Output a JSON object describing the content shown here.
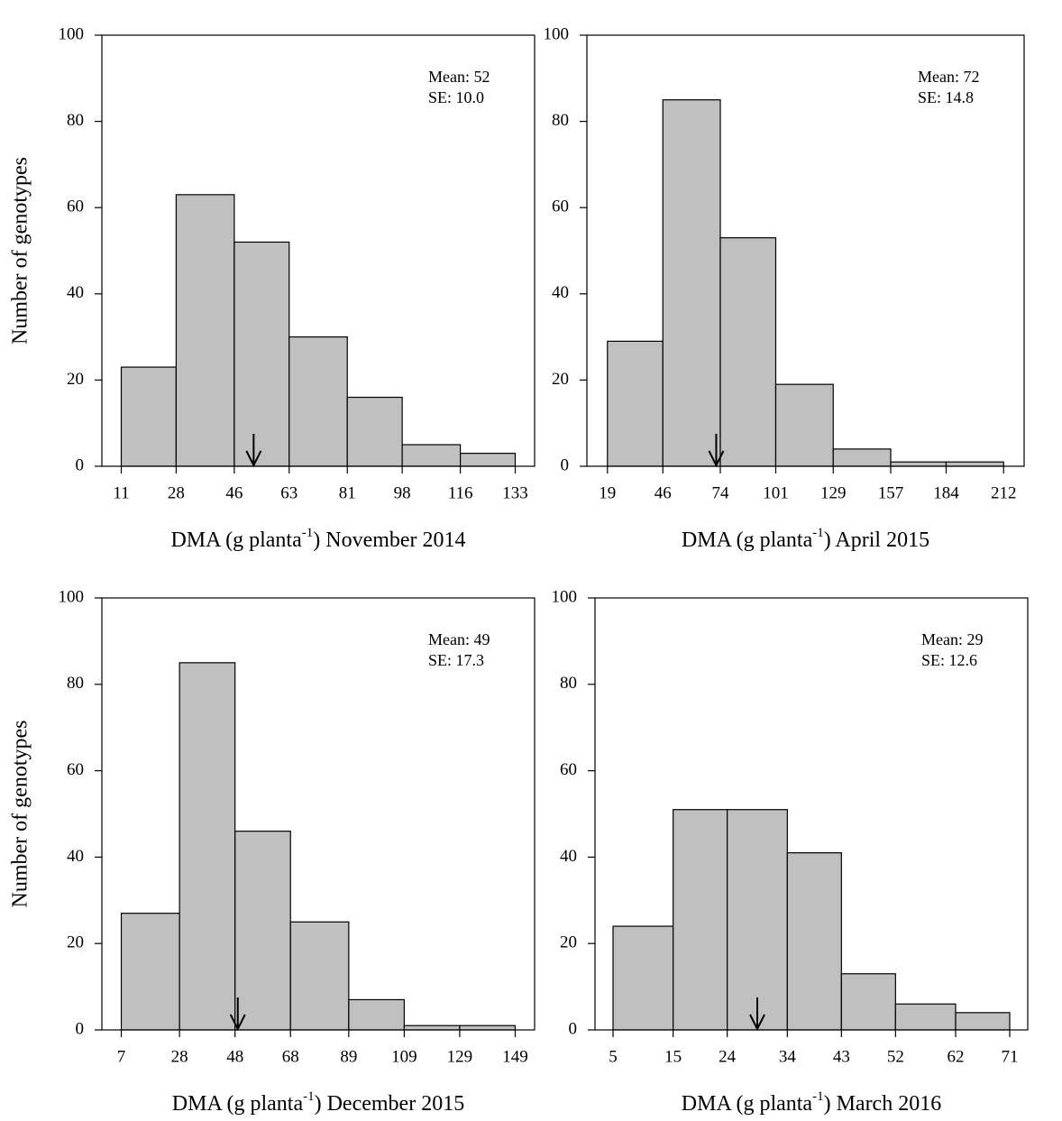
{
  "chart_data": [
    {
      "type": "histogram",
      "bins": [
        11,
        28,
        46,
        63,
        81,
        98,
        116,
        133
      ],
      "counts": [
        23,
        63,
        52,
        30,
        16,
        5,
        3
      ],
      "color": "#c0c0c0",
      "xlim": [
        5,
        139
      ],
      "xticks": [
        11,
        28,
        46,
        63,
        81,
        98,
        116,
        133
      ],
      "ylim": [
        0,
        100
      ],
      "yticks": [
        0,
        20,
        40,
        60,
        80,
        100
      ],
      "ylabel": "Number of genotypes",
      "xlabel": [
        "DMA (g planta",
        "-1",
        ") November 2014"
      ],
      "annotations": [
        "Mean: 52",
        "SE: 10.0"
      ],
      "mean_arrow": 52
    },
    {
      "type": "histogram",
      "bins": [
        19,
        46,
        74,
        101,
        129,
        157,
        184,
        212
      ],
      "counts": [
        29,
        85,
        53,
        19,
        4,
        1,
        1
      ],
      "color": "#c0c0c0",
      "xlim": [
        9,
        222
      ],
      "xticks": [
        19,
        46,
        74,
        101,
        129,
        157,
        184,
        212
      ],
      "ylim": [
        0,
        100
      ],
      "yticks": [
        0,
        20,
        40,
        60,
        80,
        100
      ],
      "xlabel": [
        "DMA (g planta",
        "-1",
        ") April 2015"
      ],
      "annotations": [
        "Mean: 72",
        "SE: 14.8"
      ],
      "mean_arrow": 72
    },
    {
      "type": "histogram",
      "bins": [
        7,
        28,
        48,
        68,
        89,
        109,
        129,
        149
      ],
      "counts": [
        27,
        85,
        46,
        25,
        7,
        1,
        1
      ],
      "color": "#c0c0c0",
      "xlim": [
        0,
        156
      ],
      "xticks": [
        7,
        28,
        48,
        68,
        89,
        109,
        129,
        149
      ],
      "ylim": [
        0,
        100
      ],
      "yticks": [
        0,
        20,
        40,
        60,
        80,
        100
      ],
      "ylabel": "Number of genotypes",
      "xlabel": [
        "DMA (g planta",
        "-1",
        ") December 2015"
      ],
      "annotations": [
        "Mean: 49",
        "SE: 17.3"
      ],
      "mean_arrow": 49
    },
    {
      "type": "histogram",
      "bins": [
        5,
        15,
        24,
        34,
        43,
        52,
        62,
        71
      ],
      "counts": [
        24,
        51,
        51,
        41,
        13,
        6,
        4
      ],
      "color": "#c0c0c0",
      "xlim": [
        2,
        74
      ],
      "xticks": [
        5,
        15,
        24,
        34,
        43,
        52,
        62,
        71
      ],
      "ylim": [
        0,
        100
      ],
      "yticks": [
        0,
        20,
        40,
        60,
        80,
        100
      ],
      "xlabel": [
        "DMA (g planta",
        "-1",
        ") March 2016"
      ],
      "annotations": [
        "Mean: 29",
        "SE: 12.6"
      ],
      "mean_arrow": 29
    }
  ]
}
